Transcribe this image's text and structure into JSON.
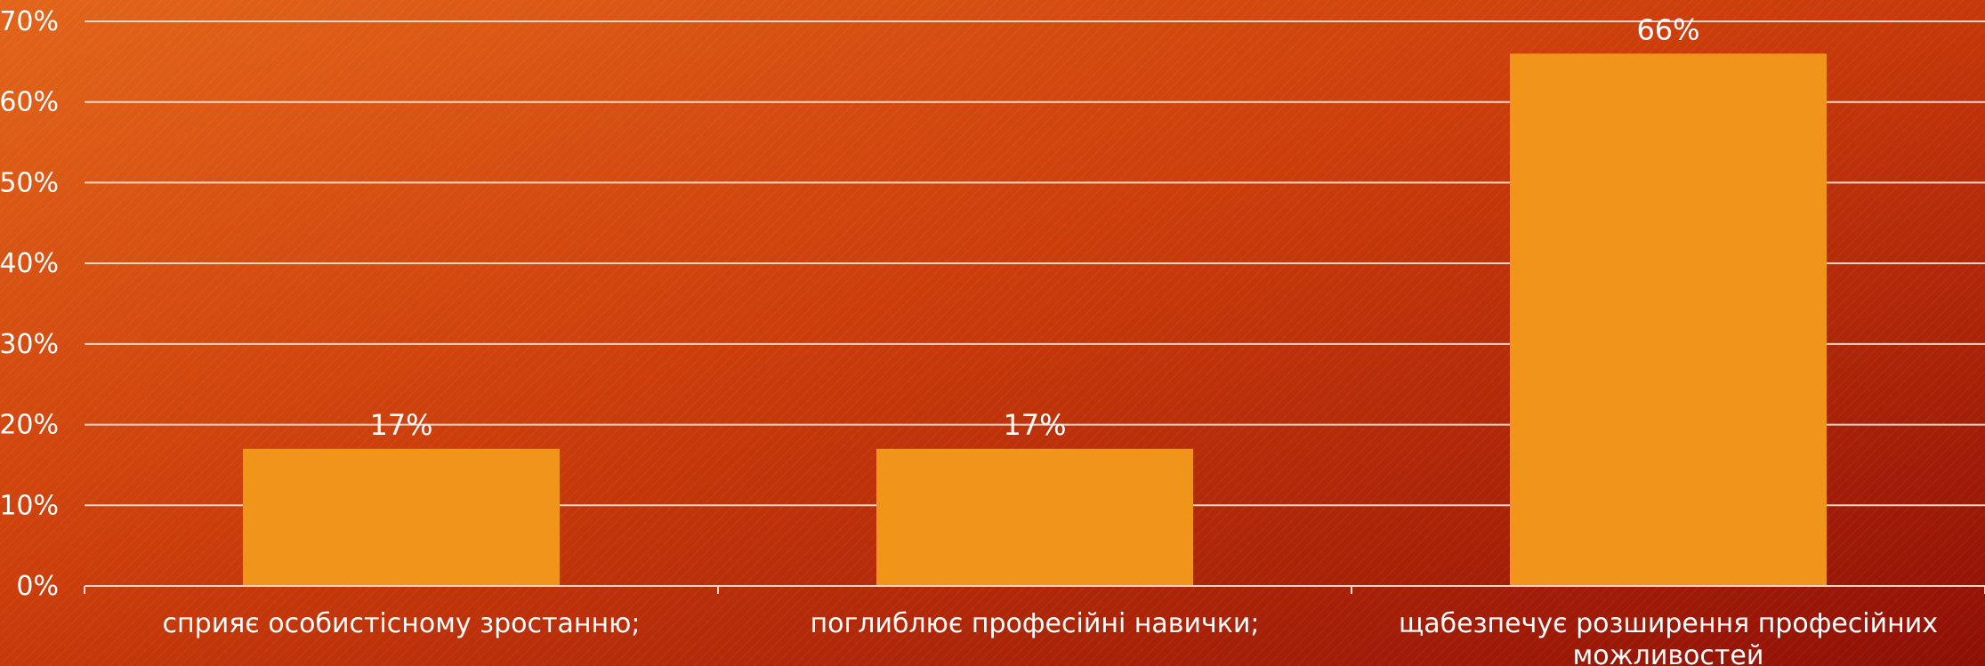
{
  "chart_data": {
    "type": "bar",
    "categories": [
      "сприяє особистісному зростанню;",
      "поглиблює професійні навички;",
      "щабезпечує розширення професійних можливостей"
    ],
    "category_lines": [
      [
        "сприяє особистісному зростанню;"
      ],
      [
        "поглиблює професійні навички;"
      ],
      [
        "щабезпечує розширення професійних",
        "можливостей"
      ]
    ],
    "values": [
      17,
      17,
      66
    ],
    "data_labels": [
      "17%",
      "17%",
      "66%"
    ],
    "ylim": [
      0,
      70
    ],
    "y_ticks": [
      0,
      10,
      20,
      30,
      40,
      50,
      60,
      70
    ],
    "y_tick_labels": [
      "0%",
      "10%",
      "20%",
      "30%",
      "40%",
      "50%",
      "60%",
      "70%"
    ],
    "grid": true,
    "legend": "none",
    "colors": {
      "bar": "#f0941a",
      "background_start": "#e2651a",
      "background_end": "#8f0f06",
      "text": "#ffffff",
      "gridline": "#f6d6c4"
    }
  }
}
